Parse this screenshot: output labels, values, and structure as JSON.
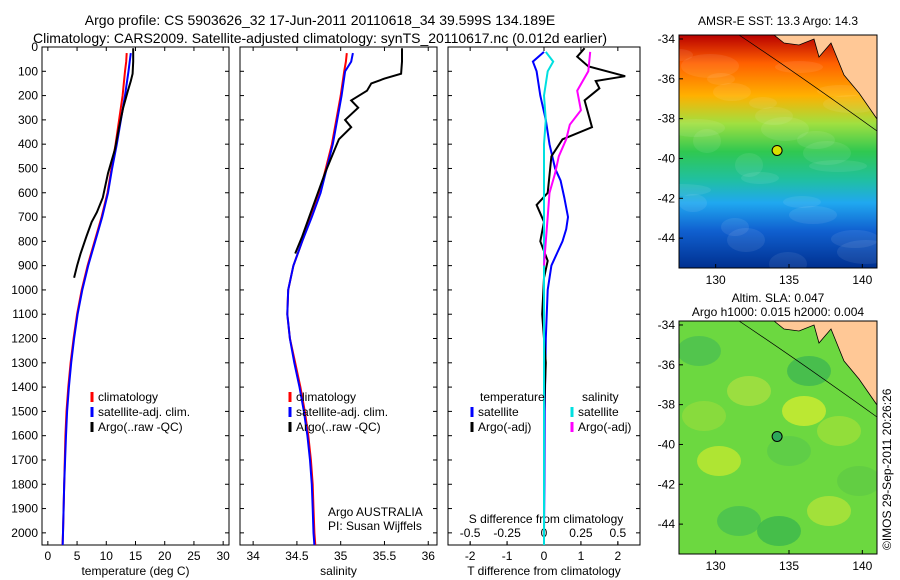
{
  "header": {
    "line1": "Argo profile: CS 5903626_32 17-Jun-2011 20110618_34 39.599S 134.189E",
    "line2": "Climatology: CARS2009. Satellite-adjusted climatology: synTS_20110617.nc (0.012d earlier)"
  },
  "colors": {
    "climatology": "#ff0000",
    "satellite": "#0000ff",
    "argo": "#000000",
    "sat_salinity": "#00e0e0",
    "argo_salinity": "#ff00ff"
  },
  "chart_data": [
    {
      "type": "line",
      "name": "temperature-profile",
      "xlabel": "temperature (deg C)",
      "xlim": [
        -1,
        31
      ],
      "xticks": [
        0,
        5,
        10,
        15,
        20,
        25,
        30
      ],
      "ylim": [
        2050,
        0
      ],
      "yticks": [
        0,
        100,
        200,
        300,
        400,
        500,
        600,
        700,
        800,
        900,
        1000,
        1100,
        1200,
        1300,
        1400,
        1500,
        1600,
        1700,
        1800,
        1900,
        2000
      ],
      "legend": [
        "climatology",
        "satellite-adj. clim.",
        "Argo(..raw -QC)"
      ],
      "series": [
        {
          "name": "climatology",
          "color": "#ff0000",
          "x": [
            13.5,
            13.4,
            13.2,
            12.8,
            12.2,
            11.6,
            10.9,
            10.2,
            9.2,
            8.0,
            6.8,
            5.8,
            5.0,
            4.4,
            3.9,
            3.5,
            3.2,
            3.0,
            2.9,
            2.8,
            2.7,
            2.6,
            2.5
          ],
          "y": [
            25,
            60,
            100,
            200,
            300,
            400,
            500,
            600,
            700,
            800,
            900,
            1000,
            1100,
            1200,
            1300,
            1400,
            1500,
            1600,
            1700,
            1800,
            1900,
            2000,
            2050
          ]
        },
        {
          "name": "satellite-adj. clim.",
          "color": "#0000ff",
          "x": [
            14.2,
            14.0,
            13.8,
            13.2,
            12.5,
            11.8,
            11.0,
            10.3,
            9.3,
            8.1,
            6.9,
            5.9,
            5.1,
            4.5,
            4.0,
            3.6,
            3.3,
            3.1,
            2.95,
            2.8,
            2.7,
            2.6,
            2.55
          ],
          "y": [
            25,
            60,
            100,
            200,
            300,
            400,
            500,
            600,
            700,
            800,
            900,
            1000,
            1100,
            1200,
            1300,
            1400,
            1500,
            1600,
            1700,
            1800,
            1900,
            2000,
            2050
          ]
        },
        {
          "name": "Argo(..raw -QC)",
          "color": "#000000",
          "x": [
            14.6,
            14.6,
            14.5,
            14.2,
            13.7,
            12.9,
            12.2,
            11.5,
            10.3,
            9.4,
            8.4,
            7.5,
            6.6,
            5.6,
            5.0,
            4.5
          ],
          "y": [
            5,
            60,
            110,
            140,
            180,
            250,
            330,
            420,
            520,
            620,
            680,
            720,
            780,
            850,
            900,
            950
          ]
        }
      ]
    },
    {
      "type": "line",
      "name": "salinity-profile",
      "xlabel": "salinity",
      "xlim": [
        33.85,
        36.1
      ],
      "xticks": [
        34,
        34.5,
        35,
        35.5,
        36
      ],
      "ylim": [
        2050,
        0
      ],
      "legend": [
        "climatology",
        "satellite-adj. clim.",
        "Argo(..raw -QC)"
      ],
      "annotation": [
        "Argo AUSTRALIA",
        "PI: Susan Wijffels"
      ],
      "series": [
        {
          "name": "climatology",
          "color": "#ff0000",
          "x": [
            35.07,
            35.06,
            35.04,
            35.0,
            34.95,
            34.9,
            34.83,
            34.76,
            34.66,
            34.56,
            34.46,
            34.4,
            34.39,
            34.42,
            34.48,
            34.54,
            34.59,
            34.63,
            34.66,
            34.68,
            34.69,
            34.7,
            34.71
          ],
          "y": [
            25,
            60,
            100,
            200,
            300,
            400,
            500,
            600,
            700,
            800,
            900,
            1000,
            1100,
            1200,
            1300,
            1400,
            1500,
            1600,
            1700,
            1800,
            1900,
            2000,
            2050
          ]
        },
        {
          "name": "satellite-adj. clim.",
          "color": "#0000ff",
          "x": [
            35.14,
            35.12,
            35.05,
            35.01,
            34.96,
            34.91,
            34.84,
            34.77,
            34.67,
            34.56,
            34.46,
            34.4,
            34.39,
            34.42,
            34.47,
            34.53,
            34.58,
            34.62,
            34.65,
            34.67,
            34.68,
            34.69,
            34.7
          ],
          "y": [
            25,
            60,
            100,
            200,
            300,
            400,
            500,
            600,
            700,
            800,
            900,
            1000,
            1100,
            1200,
            1300,
            1400,
            1500,
            1600,
            1700,
            1800,
            1900,
            2000,
            2050
          ]
        },
        {
          "name": "Argo(..raw -QC)",
          "color": "#000000",
          "x": [
            35.7,
            35.7,
            35.69,
            35.5,
            35.35,
            35.3,
            35.12,
            35.2,
            35.05,
            35.12,
            34.98,
            34.9,
            34.82,
            34.74,
            34.64,
            34.56,
            34.48
          ],
          "y": [
            5,
            60,
            110,
            130,
            150,
            180,
            220,
            250,
            300,
            330,
            380,
            450,
            520,
            600,
            700,
            780,
            850
          ]
        }
      ]
    },
    {
      "type": "line",
      "name": "difference-profile",
      "xlabel": "T difference from climatology",
      "xlim": [
        -2.6,
        2.6
      ],
      "xticks": [
        -2,
        -1,
        0,
        1,
        2
      ],
      "top_axis_label": "S difference from climatology",
      "top_ticks": [
        -0.5,
        -0.25,
        0,
        0.25,
        0.5
      ],
      "top_tick_labels": [
        "-0.5",
        "-0.25",
        "0",
        "0.25",
        "0.5"
      ],
      "ylim": [
        2050,
        0
      ],
      "legend_headers": [
        "temperature",
        "salinity"
      ],
      "legend": [
        "satellite",
        "Argo(-adj)",
        "satellite",
        "Argo(-adj)"
      ],
      "series": [
        {
          "name": "temperature satellite",
          "color": "#0000ff",
          "x": [
            0.0,
            -0.3,
            -0.2,
            -0.1,
            0.05,
            0.15,
            0.3,
            0.45,
            0.55,
            0.65,
            0.6,
            0.5,
            0.35,
            0.2,
            0.1,
            0.05,
            0.02,
            0.01,
            0.0,
            0.0
          ],
          "y": [
            20,
            60,
            100,
            200,
            300,
            400,
            500,
            550,
            620,
            700,
            750,
            800,
            850,
            900,
            1000,
            1200,
            1500,
            1800,
            2000,
            2050
          ]
        },
        {
          "name": "temperature Argo(-adj)",
          "color": "#000000",
          "x": [
            1.1,
            0.9,
            1.2,
            2.2,
            1.4,
            1.5,
            1.1,
            1.3,
            0.5,
            0.2,
            0.1,
            -0.2,
            0.0,
            -0.1,
            0.1,
            0.0,
            -0.05,
            0.05,
            0.0
          ],
          "y": [
            5,
            40,
            80,
            120,
            140,
            170,
            220,
            330,
            380,
            450,
            600,
            650,
            720,
            800,
            880,
            950,
            1100,
            1300,
            1500
          ]
        },
        {
          "name": "salinity satellite",
          "color": "#00e0e0",
          "x": [
            0.05,
            0.25,
            0.1,
            0.0,
            0.05,
            0.0,
            0.0,
            0.0,
            0.0,
            0.0,
            0.0,
            0.0
          ],
          "y": [
            20,
            60,
            100,
            200,
            300,
            400,
            600,
            800,
            1000,
            1400,
            1800,
            2050
          ]
        },
        {
          "name": "salinity Argo(-adj)",
          "color": "#ff00ff",
          "x": [
            1.25,
            1.2,
            0.9,
            1.0,
            0.7,
            0.6,
            0.4,
            0.3,
            0.15,
            0.1,
            0.05,
            0.0
          ],
          "y": [
            20,
            100,
            180,
            260,
            320,
            380,
            450,
            520,
            600,
            700,
            800,
            900
          ]
        }
      ]
    },
    {
      "type": "heatmap",
      "name": "sst-map",
      "title": "AMSR-E SST: 13.3 Argo: 14.3",
      "xlim": [
        127.5,
        141
      ],
      "ylim": [
        -45.5,
        -33.8
      ],
      "xticks": [
        130,
        135,
        140
      ],
      "yticks": [
        -44,
        -42,
        -40,
        -38,
        -36,
        -34
      ],
      "marker": {
        "lon": 134.189,
        "lat": -39.599,
        "color": "#d8e000"
      }
    },
    {
      "type": "heatmap",
      "name": "sla-map",
      "title": "Altim. SLA: 0.047",
      "subtitle": "Argo h1000: 0.015 h2000: 0.004",
      "xlim": [
        127.5,
        141
      ],
      "ylim": [
        -45.5,
        -33.8
      ],
      "xticks": [
        130,
        135,
        140
      ],
      "yticks": [
        -44,
        -42,
        -40,
        -38,
        -36,
        -34
      ],
      "marker": {
        "lon": 134.189,
        "lat": -39.599,
        "color": "#2da85a"
      }
    }
  ],
  "credit": "©IMOS 29-Sep-2011 20:26:26"
}
